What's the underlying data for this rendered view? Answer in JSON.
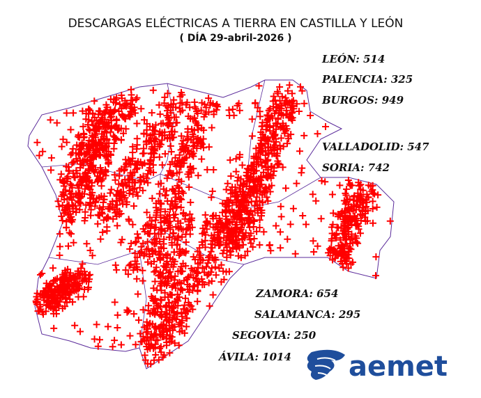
{
  "header": {
    "title": "DESCARGAS ELÉCTRICAS A TIERRA EN CASTILLA Y LEÓN",
    "subtitle": "( DÍA 29-abril-2026 )"
  },
  "provinces": [
    "LEÓN: 514",
    "PALENCIA: 325",
    "BURGOS: 949",
    "VALLADOLID: 547",
    "SORIA: 742",
    "ZAMORA: 654",
    "SALAMANCA: 295",
    "SEGOVIA: 250",
    "ÁVILA: 1014"
  ],
  "logo": {
    "text": "aemet"
  }
}
